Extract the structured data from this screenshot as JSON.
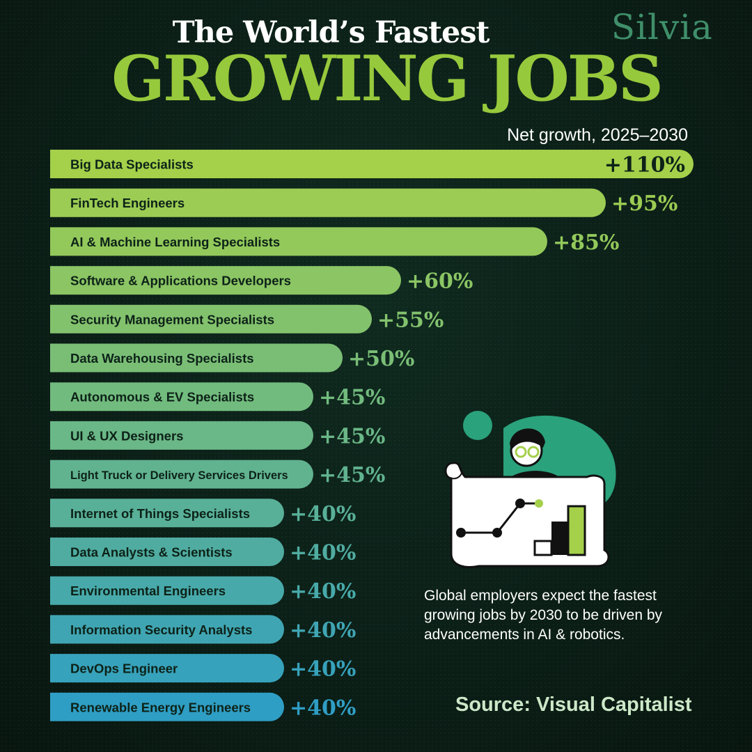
{
  "brand": "Silvia",
  "title": {
    "line1": "The World’s Fastest",
    "line2": "GROWING JOBS"
  },
  "subtitle": "Net growth, 2025–2030",
  "note": "Global employers expect the fastest growing jobs by 2030 to be driven by advancements in AI & robotics.",
  "source": "Source: Visual Capitalist",
  "colors": {
    "bar_top": "#a4d04a",
    "bar_bottom": "#2f9ec4",
    "title_green": "#97c93c",
    "illustration_teal": "#2aa27c"
  },
  "chart_data": {
    "type": "bar",
    "orientation": "horizontal",
    "title": "The World’s Fastest Growing Jobs",
    "xlabel": "Net growth, 2025–2030",
    "unit": "%",
    "xlim": [
      0,
      110
    ],
    "categories": [
      "Big Data Specialists",
      "FinTech Engineers",
      "AI & Machine Learning Specialists",
      "Software & Applications Developers",
      "Security Management Specialists",
      "Data Warehousing Specialists",
      "Autonomous & EV Specialists",
      "UI & UX Designers",
      "Light Truck or Delivery Services Drivers",
      "Internet of Things Specialists",
      "Data Analysts & Scientists",
      "Environmental Engineers",
      "Information Security Analysts",
      "DevOps Engineer",
      "Renewable Energy Engineers"
    ],
    "values": [
      110,
      95,
      85,
      60,
      55,
      50,
      45,
      45,
      45,
      40,
      40,
      40,
      40,
      40,
      40
    ],
    "value_labels": [
      "+110%",
      "+95%",
      "+85%",
      "+60%",
      "+55%",
      "+50%",
      "+45%",
      "+45%",
      "+45%",
      "+40%",
      "+40%",
      "+40%",
      "+40%",
      "+40%",
      "+40%"
    ]
  }
}
